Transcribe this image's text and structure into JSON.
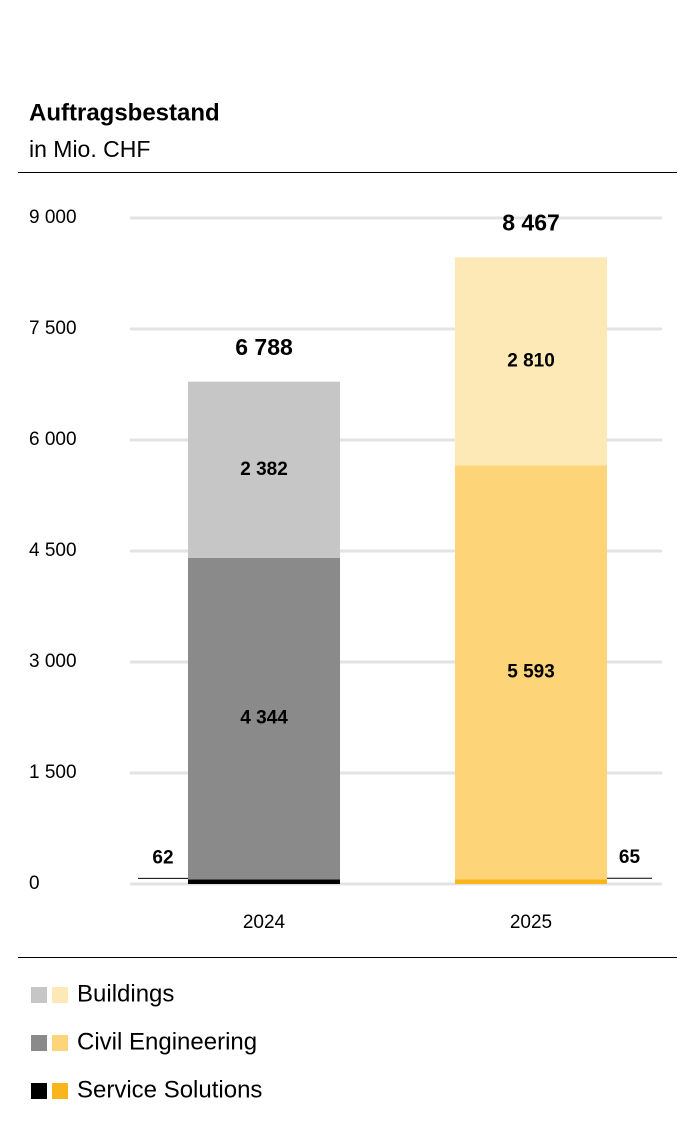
{
  "chart_data": {
    "type": "stacked-bar",
    "title": "Auftragsbestand",
    "subtitle": "in Mio. CHF",
    "categories": [
      "2024",
      "2025"
    ],
    "series": [
      {
        "name": "Buildings",
        "colors": [
          "#c6c6c6",
          "#fde9b6"
        ],
        "values": [
          2382,
          2810
        ],
        "value_labels": [
          "2 382",
          "2 810"
        ]
      },
      {
        "name": "Civil Engineering",
        "colors": [
          "#8a8a8a",
          "#fed478"
        ],
        "values": [
          4344,
          5593
        ],
        "value_labels": [
          "4 344",
          "5 593"
        ]
      },
      {
        "name": "Service Solutions",
        "colors": [
          "#000000",
          "#f8b51c"
        ],
        "values": [
          62,
          65
        ]
      }
    ],
    "totals": [
      6788,
      8467
    ],
    "total_labels": [
      "6 788",
      "8 467"
    ],
    "ylim": [
      0,
      9000
    ],
    "yticks": [
      0,
      {
        "value": 1500,
        "label": "1 500"
      },
      {
        "value": 3000,
        "label": "3 000"
      },
      {
        "value": 4500,
        "label": "4 500"
      },
      {
        "value": 6000,
        "label": "6 000"
      },
      {
        "value": 7500,
        "label": "7 500"
      },
      {
        "value": 9000,
        "label": "9 000"
      }
    ],
    "grid": true
  }
}
